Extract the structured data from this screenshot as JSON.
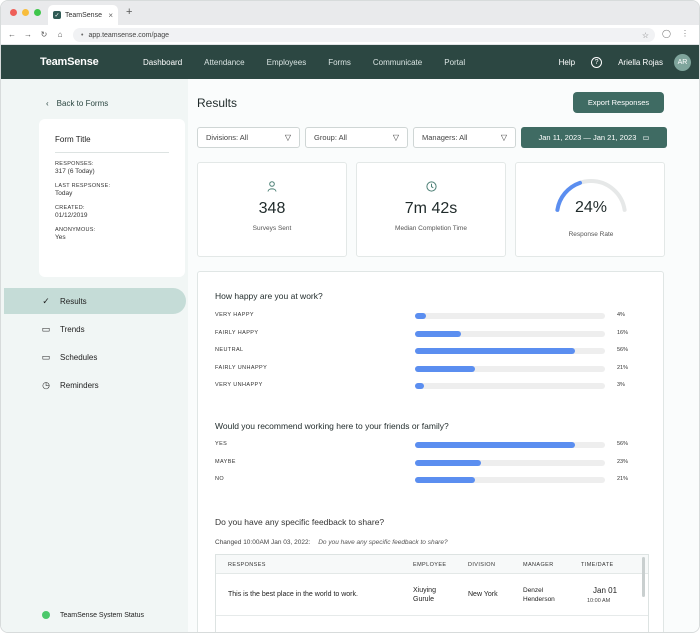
{
  "browser": {
    "tab_title": "TeamSense",
    "url": "app.teamsense.com/page"
  },
  "nav": {
    "logo": "TeamSense",
    "items": [
      "Dashboard",
      "Attendance",
      "Employees",
      "Forms",
      "Communicate",
      "Portal"
    ],
    "help": "Help",
    "user_name": "Ariella Rojas",
    "user_initials": "AR"
  },
  "sidebar": {
    "back_label": "Back to Forms",
    "form_card": {
      "title": "Form Title",
      "responses_label": "RESPONSES:",
      "responses_value": "317 (6 Today)",
      "last_label": "LAST RESPSONSE:",
      "last_value": "Today",
      "created_label": "CREATED:",
      "created_value": "01/12/2019",
      "anon_label": "ANONYMOUS:",
      "anon_value": "Yes"
    },
    "items": [
      {
        "label": "Results",
        "icon": "check-icon"
      },
      {
        "label": "Trends",
        "icon": "calendar-icon"
      },
      {
        "label": "Schedules",
        "icon": "calendar-icon"
      },
      {
        "label": "Reminders",
        "icon": "clock-icon"
      }
    ],
    "status_label": "TeamSense System Status",
    "status_color": "#4cc86b"
  },
  "main": {
    "title": "Results",
    "export_label": "Export Responses",
    "filters": {
      "divisions": "Divisions: All",
      "group": "Group: All",
      "managers": "Managers: All",
      "date_range": "Jan 11, 2023  — Jan 21, 2023"
    },
    "stats": {
      "surveys_value": "348",
      "surveys_label": "Surveys Sent",
      "median_value": "7m 42s",
      "median_label": "Median Completion Time",
      "rate_value": "24%",
      "rate_label": "Response Rate",
      "rate_fraction": 0.24
    },
    "q1": {
      "question": "How happy are you at work?",
      "rows": [
        {
          "label": "VERY HAPPY",
          "pct": "4%",
          "value": 4
        },
        {
          "label": "FAIRLY HAPPY",
          "pct": "16%",
          "value": 16
        },
        {
          "label": "NEUTRAL",
          "pct": "56%",
          "value": 56
        },
        {
          "label": "FAIRLY UNHAPPY",
          "pct": "21%",
          "value": 21
        },
        {
          "label": "VERY UNHAPPY",
          "pct": "3%",
          "value": 3
        }
      ]
    },
    "q2": {
      "question": "Would you recommend working here to your friends or family?",
      "rows": [
        {
          "label": "YES",
          "pct": "56%",
          "value": 56
        },
        {
          "label": "MAYBE",
          "pct": "23%",
          "value": 23
        },
        {
          "label": "NO",
          "pct": "21%",
          "value": 21
        }
      ]
    },
    "q3": {
      "question": "Do you have any specific feedback to share?",
      "changed": "Changed 10:00AM Jan 03, 2022:",
      "changed_q": "Do you have any specific feedback to share?"
    },
    "table": {
      "headers": {
        "responses": "RESPONSES",
        "employee": "EMPLOYEE",
        "division": "DIVISION",
        "manager": "MANAGER",
        "time": "TIME/DATE"
      },
      "rows": [
        {
          "response": "This is the best place in the world to work.",
          "employee": "Xiuying Gurule",
          "division": "New York",
          "manager": "Denzel Henderson",
          "date": "Jan 01",
          "time": "10:00 AM"
        }
      ]
    }
  }
}
